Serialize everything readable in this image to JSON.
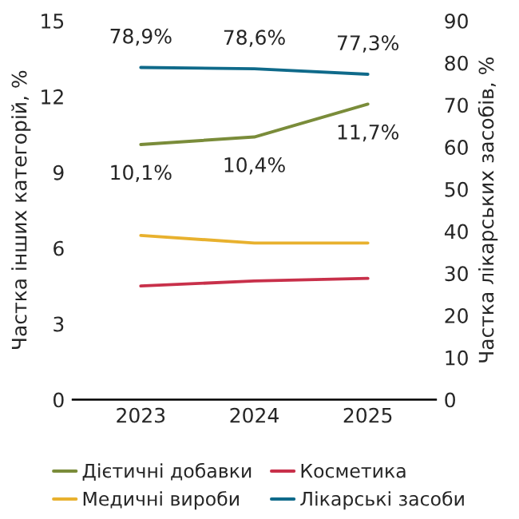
{
  "chart_data": {
    "type": "line",
    "ylabel": "Частка інших категорій, %",
    "y2label": "Частка лікарських засобів, %",
    "categories": [
      "2023",
      "2024",
      "2025"
    ],
    "ylim": [
      0,
      15
    ],
    "yticks": [
      0,
      3,
      6,
      9,
      12,
      15
    ],
    "y2lim": [
      0,
      90
    ],
    "y2ticks": [
      0,
      10,
      20,
      30,
      40,
      50,
      60,
      70,
      80,
      90
    ],
    "legend": "bottom",
    "grid": false,
    "series": [
      {
        "name": "Дієтичні добавки",
        "color": "#7a8c3a",
        "values": [
          10.1,
          10.4,
          11.7
        ],
        "value_labels": [
          "10,1%",
          "10,4%",
          "11,7%"
        ]
      },
      {
        "name": "Медичні вироби",
        "color": "#e8b12e",
        "values": [
          6.5,
          6.2,
          6.2
        ]
      },
      {
        "name": "Косметика",
        "color": "#c8304a",
        "values": [
          4.5,
          4.7,
          4.8
        ]
      },
      {
        "name": "Лікарські засоби",
        "color": "#0f6a8a",
        "values": [
          78.9,
          78.6,
          77.3
        ],
        "axis": "y2",
        "value_labels": [
          "78,9%",
          "78,6%",
          "77,3%"
        ]
      }
    ]
  }
}
